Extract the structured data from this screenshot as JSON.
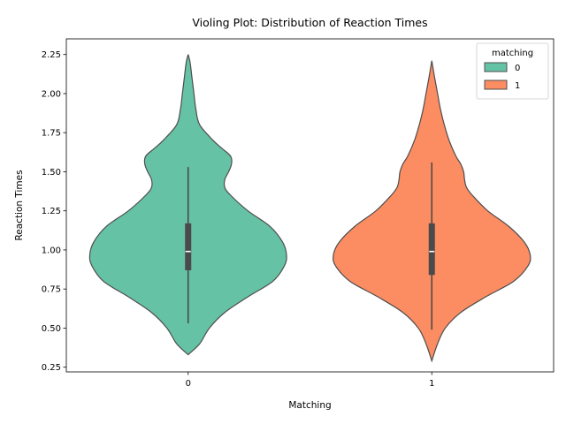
{
  "chart_data": {
    "type": "violin",
    "title": "Violing Plot: Distribution of Reaction Times",
    "xlabel": "Matching",
    "ylabel": "Reaction Times",
    "categories": [
      "0",
      "1"
    ],
    "ylim": [
      0.22,
      2.35
    ],
    "yticks": [
      "0.25",
      "0.50",
      "0.75",
      "1.00",
      "1.25",
      "1.50",
      "1.75",
      "2.00",
      "2.25"
    ],
    "grid": false,
    "legend": {
      "title": "matching",
      "placement": "top-right",
      "entries": [
        "0",
        "1"
      ]
    },
    "series": [
      {
        "name": "0",
        "color": "#66c2a5",
        "extent": [
          0.33,
          2.25
        ],
        "quartiles": [
          0.87,
          0.99,
          1.17
        ],
        "whiskers": [
          0.53,
          1.53
        ],
        "profile_y": [
          0.33,
          0.4,
          0.5,
          0.6,
          0.7,
          0.8,
          0.9,
          0.97,
          1.05,
          1.15,
          1.25,
          1.35,
          1.4,
          1.45,
          1.5,
          1.55,
          1.6,
          1.65,
          1.7,
          1.8,
          1.9,
          2.0,
          2.1,
          2.2,
          2.25
        ],
        "profile_w": [
          0.0,
          0.12,
          0.22,
          0.38,
          0.62,
          0.88,
          1.0,
          1.02,
          0.98,
          0.85,
          0.62,
          0.44,
          0.38,
          0.38,
          0.42,
          0.45,
          0.44,
          0.35,
          0.26,
          0.12,
          0.08,
          0.06,
          0.04,
          0.02,
          0.0
        ]
      },
      {
        "name": "1",
        "color": "#fc8d62",
        "extent": [
          0.29,
          2.21
        ],
        "quartiles": [
          0.84,
          0.99,
          1.17
        ],
        "whiskers": [
          0.49,
          1.56
        ],
        "profile_y": [
          0.29,
          0.4,
          0.5,
          0.6,
          0.7,
          0.8,
          0.9,
          0.97,
          1.05,
          1.15,
          1.25,
          1.35,
          1.4,
          1.45,
          1.5,
          1.55,
          1.6,
          1.7,
          1.8,
          1.9,
          2.0,
          2.1,
          2.21
        ],
        "profile_w": [
          0.0,
          0.06,
          0.14,
          0.3,
          0.56,
          0.85,
          1.0,
          1.02,
          0.96,
          0.8,
          0.58,
          0.42,
          0.36,
          0.34,
          0.33,
          0.3,
          0.25,
          0.18,
          0.13,
          0.09,
          0.06,
          0.03,
          0.0
        ]
      }
    ]
  }
}
